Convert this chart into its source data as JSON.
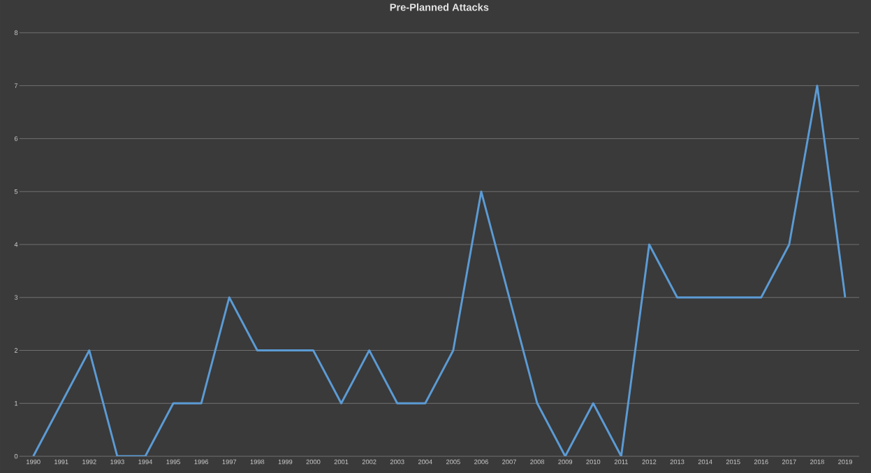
{
  "chart_data": {
    "type": "line",
    "title": "Pre-Planned Attacks",
    "categories": [
      "1990",
      "1991",
      "1992",
      "1993",
      "1994",
      "1995",
      "1996",
      "1997",
      "1998",
      "1999",
      "2000",
      "2001",
      "2002",
      "2003",
      "2004",
      "2005",
      "2006",
      "2007",
      "2008",
      "2009",
      "2010",
      "2011",
      "2012",
      "2013",
      "2014",
      "2015",
      "2016",
      "2017",
      "2018",
      "2019"
    ],
    "series": [
      {
        "color": "#5b9bd5",
        "values": [
          0,
          1,
          2,
          0,
          0,
          1,
          1,
          3,
          2,
          2,
          2,
          1,
          2,
          1,
          1,
          2,
          5,
          3,
          1,
          0,
          1,
          0,
          4,
          3,
          3,
          3,
          3,
          4,
          7,
          3
        ]
      }
    ],
    "ylim": [
      0,
      8
    ],
    "yticks": [
      0,
      1,
      2,
      3,
      4,
      5,
      6,
      7,
      8
    ],
    "grid": "y",
    "marker": "none",
    "line_style": "solid"
  }
}
